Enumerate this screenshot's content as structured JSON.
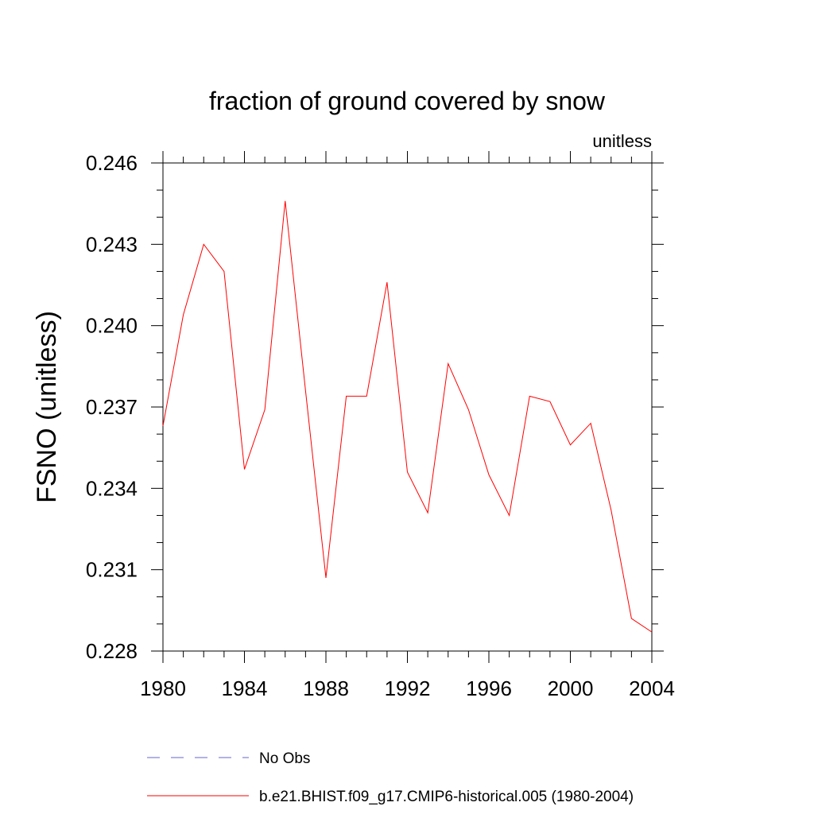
{
  "chart_data": {
    "type": "line",
    "title": "fraction of ground covered by snow",
    "unit_label": "unitless",
    "ylabel": "FSNO  (unitless)",
    "xlabel": "",
    "xlim": [
      1980,
      2004
    ],
    "ylim": [
      0.228,
      0.246
    ],
    "xticks": [
      "1980",
      "1984",
      "1988",
      "1992",
      "1996",
      "2000",
      "2004"
    ],
    "yticks": [
      "0.228",
      "0.231",
      "0.234",
      "0.237",
      "0.240",
      "0.243",
      "0.246"
    ],
    "x": [
      1980,
      1981,
      1982,
      1983,
      1984,
      1985,
      1986,
      1987,
      1988,
      1989,
      1990,
      1991,
      1992,
      1993,
      1994,
      1995,
      1996,
      1997,
      1998,
      1999,
      2000,
      2001,
      2002,
      2003,
      2004
    ],
    "series": [
      {
        "name": "b.e21.BHIST.f09_g17.CMIP6-historical.005 (1980-2004)",
        "color": "#ff0000",
        "style": "solid",
        "values": [
          0.2363,
          0.2404,
          0.243,
          0.242,
          0.2347,
          0.2369,
          0.2446,
          0.2376,
          0.2307,
          0.2374,
          0.2374,
          0.2416,
          0.2346,
          0.2331,
          0.2386,
          0.2369,
          0.2345,
          0.233,
          0.2374,
          0.2372,
          0.2356,
          0.2364,
          0.2332,
          0.2292,
          0.2287
        ]
      }
    ],
    "legend": [
      {
        "label": "No Obs",
        "color": "#6666cc",
        "style": "dashed"
      },
      {
        "label": "b.e21.BHIST.f09_g17.CMIP6-historical.005 (1980-2004)",
        "color": "#ff0000",
        "style": "solid"
      }
    ],
    "legend_position": "bottom",
    "grid": false
  }
}
